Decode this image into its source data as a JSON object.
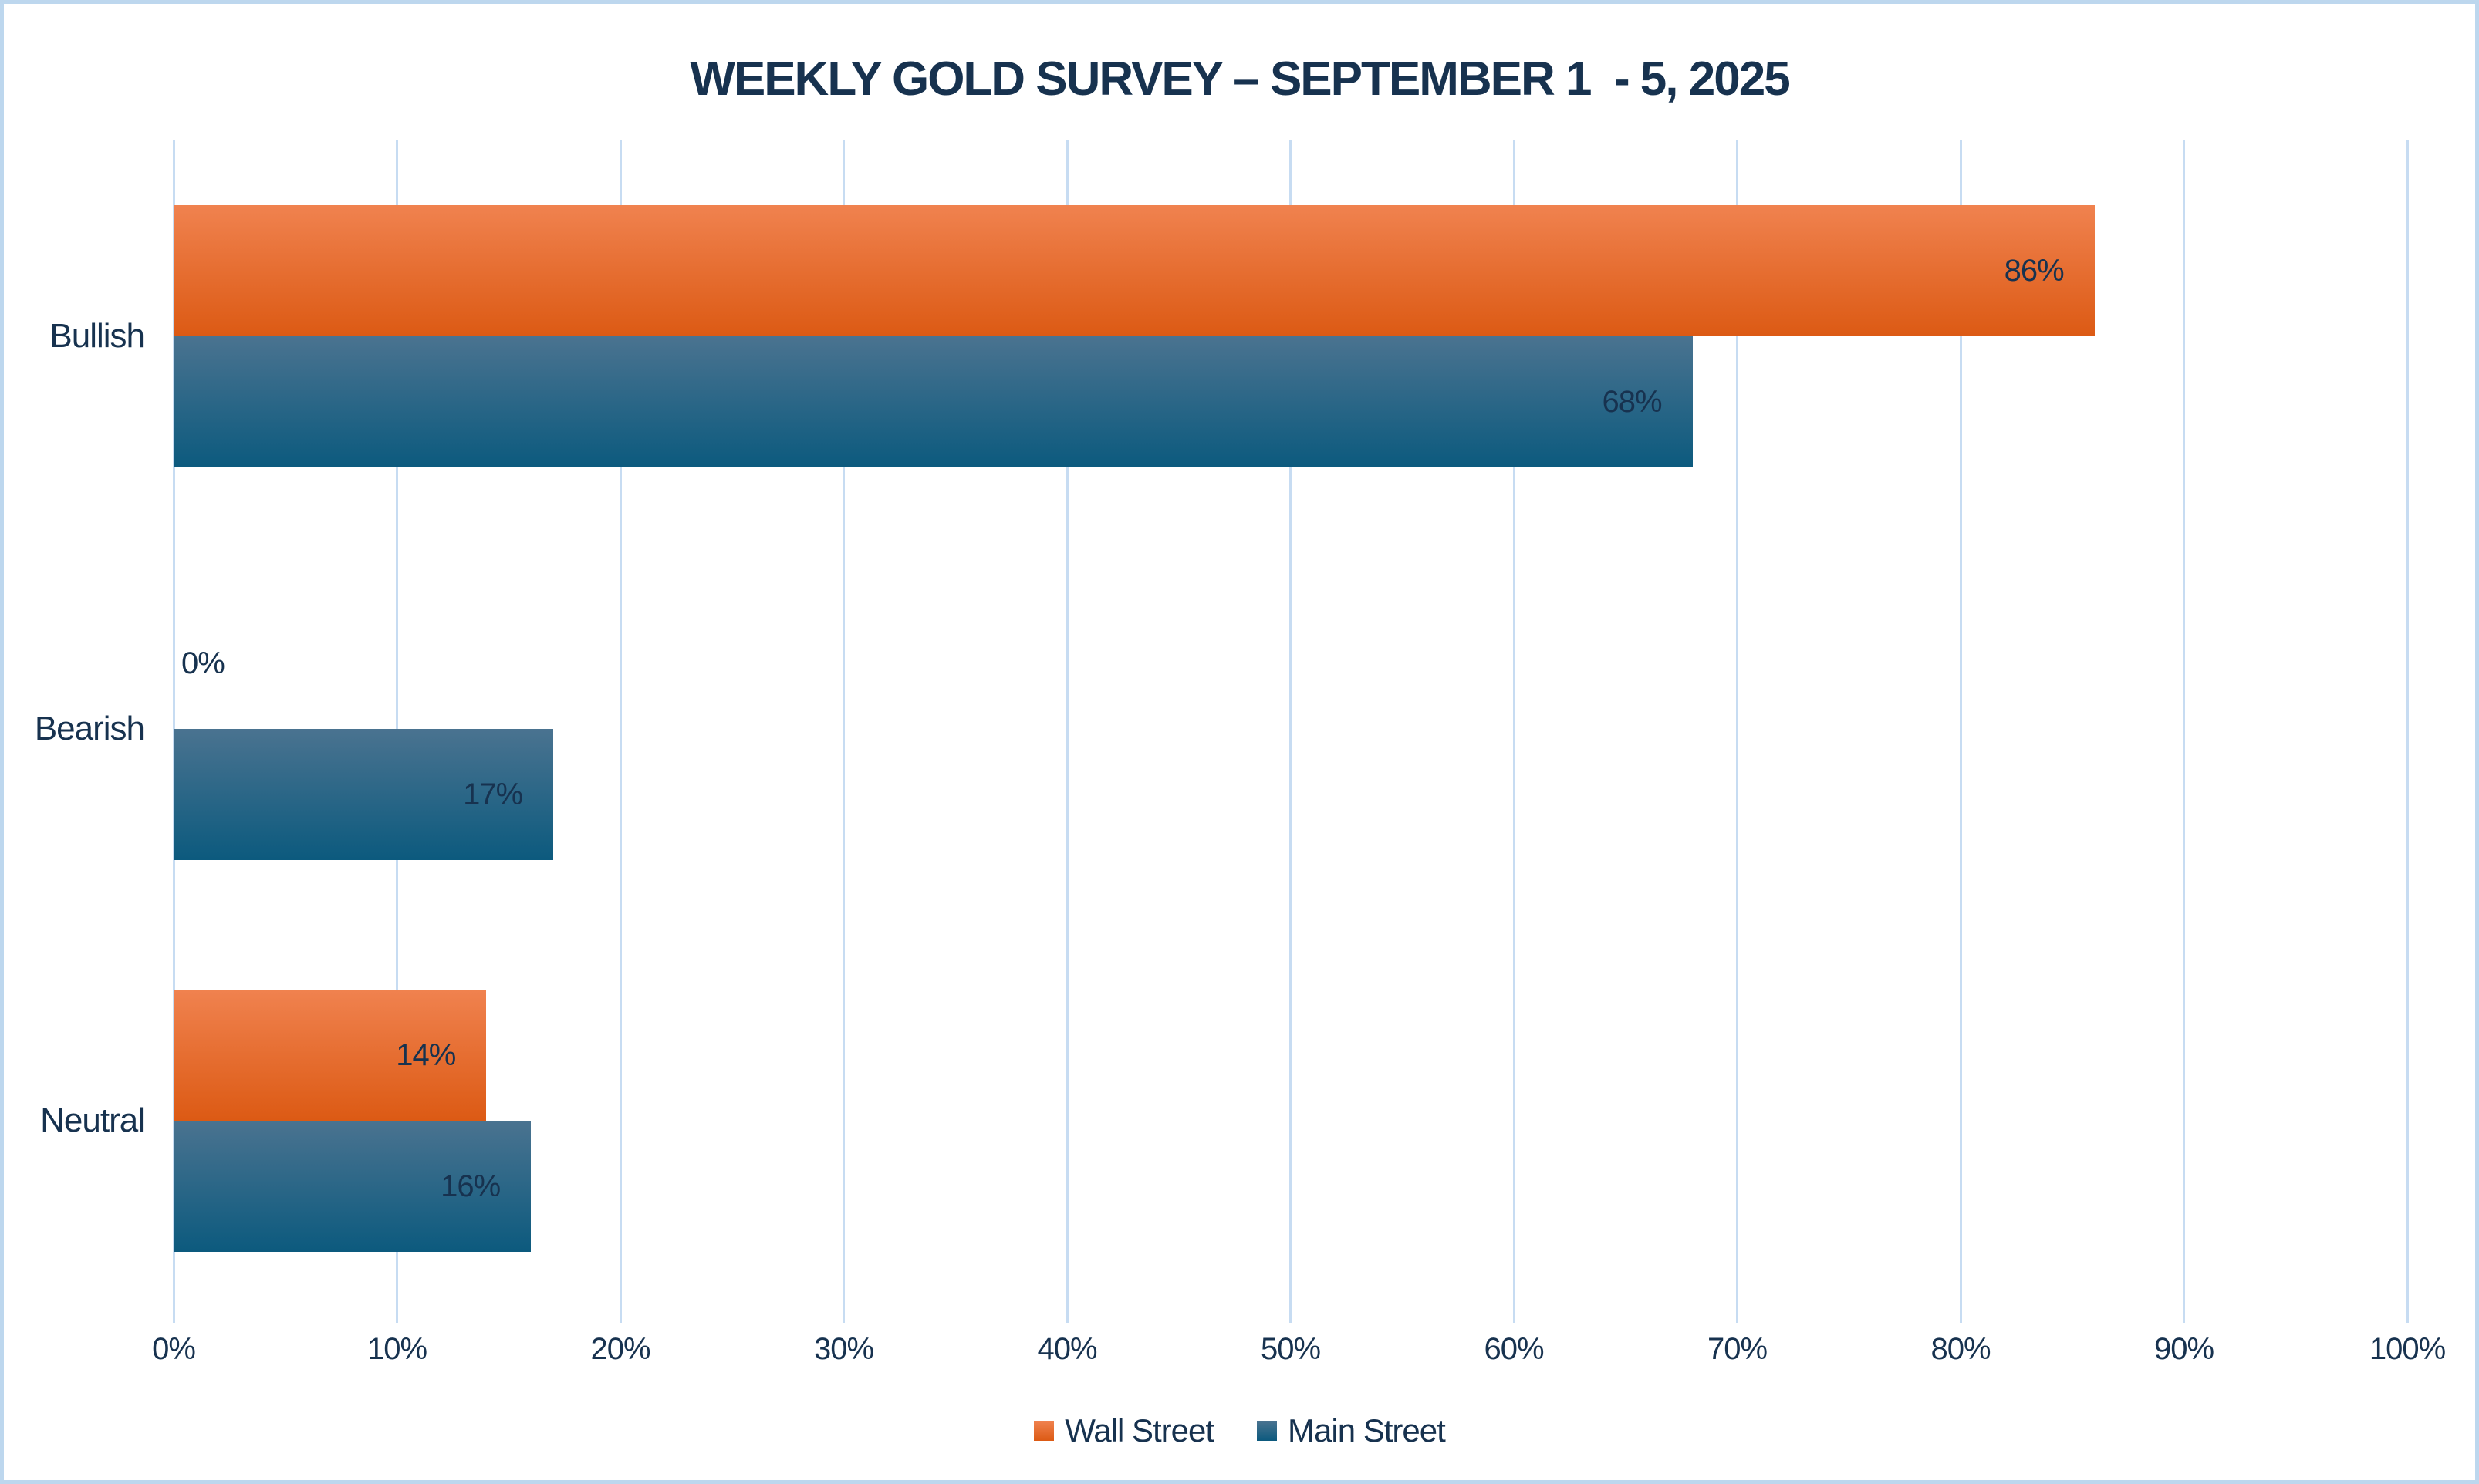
{
  "chart_data": {
    "type": "bar",
    "orientation": "horizontal",
    "title": "WEEKLY GOLD SURVEY – SEPTEMBER 1  - 5, 2025",
    "categories": [
      "Bullish",
      "Bearish",
      "Neutral"
    ],
    "series": [
      {
        "name": "Wall Street",
        "values": [
          86,
          0,
          14
        ],
        "labels": [
          "86%",
          "0%",
          "14%"
        ],
        "color_top": "#f0824f",
        "color_bottom": "#dc5a14"
      },
      {
        "name": "Main Street",
        "values": [
          68,
          17,
          16
        ],
        "labels": [
          "68%",
          "17%",
          "16%"
        ],
        "color_top": "#4a7390",
        "color_bottom": "#0c5a7e"
      }
    ],
    "xlabel": "",
    "ylabel": "",
    "xlim": [
      0,
      100
    ],
    "x_tick_step": 10,
    "x_tick_labels": [
      "0%",
      "10%",
      "20%",
      "30%",
      "40%",
      "50%",
      "60%",
      "70%",
      "80%",
      "90%",
      "100%"
    ],
    "value_suffix": "%",
    "grid": "vertical",
    "gridline_color": "#c7dcf2",
    "data_labels": "inside-end",
    "label_color": "#17324f",
    "legend_position": "bottom",
    "background_color": "#ffffff",
    "border_color": "#bdd7ee"
  }
}
